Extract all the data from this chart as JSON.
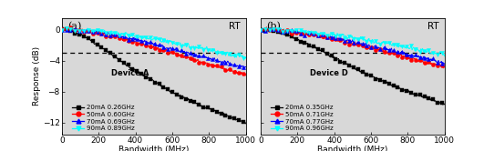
{
  "title_a": "(a)",
  "title_b": "(b)",
  "rt_label": "RT",
  "xlabel": "Bandwidth (MHz)",
  "ylabel": "Response (dB)",
  "xlim": [
    0,
    1000
  ],
  "ylim": [
    -13.5,
    1.5
  ],
  "yticks": [
    0,
    -4,
    -8,
    -12
  ],
  "xticks": [
    0,
    200,
    400,
    600,
    800,
    1000
  ],
  "dashed_y": -3.0,
  "device_a_label": "Device A",
  "device_b_label": "Device D",
  "legend_a": [
    "20mA 0.26GHz",
    "50mA 0.60GHz",
    "70mA 0.69GHz",
    "90mA 0.89GHz"
  ],
  "legend_b": [
    "20mA 0.35GHz",
    "50mA 0.71GHz",
    "70mA 0.77GHz",
    "90mA 0.96GHz"
  ],
  "colors": [
    "black",
    "red",
    "blue",
    "cyan"
  ],
  "markers": [
    "s",
    "o",
    "^",
    "v"
  ],
  "marker_sizes": [
    2.5,
    3.0,
    3.0,
    3.0
  ],
  "f3db_a": [
    0.26,
    0.6,
    0.69,
    0.89
  ],
  "f3db_b": [
    0.35,
    0.71,
    0.77,
    0.96
  ],
  "bg_color": "#d8d8d8",
  "noise_amps": [
    0.12,
    0.18,
    0.18,
    0.22
  ],
  "linewidth": 0.7,
  "marker_every": 12
}
